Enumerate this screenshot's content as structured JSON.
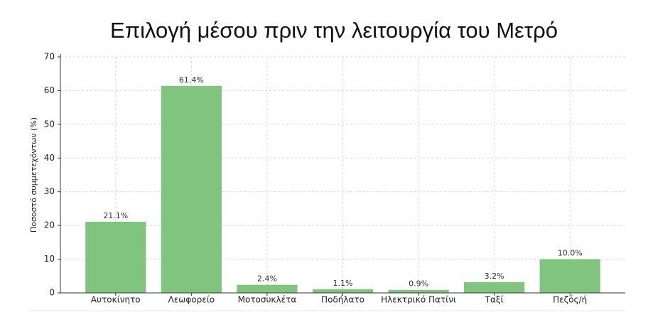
{
  "chart_data": {
    "type": "bar",
    "title": "Επιλογή μέσου πριν την λειτουργία του Μετρό",
    "y_label": "Ποσοστό συμμετεχόντων (%)",
    "categories": [
      "Αυτοκίνητο",
      "Λεωφορείο",
      "Μοτοσυκλέτα",
      "Ποδήλατο",
      "Ηλεκτρικό Πατίνι",
      "Ταξί",
      "Πεζός/ή"
    ],
    "values": [
      21.1,
      61.4,
      2.4,
      1.1,
      0.9,
      3.2,
      10.0
    ],
    "value_labels": [
      "21.1%",
      "61.4%",
      "2.4%",
      "1.1%",
      "0.9%",
      "3.2%",
      "10.0%"
    ],
    "color": "#80c480",
    "ylim": [
      0,
      70
    ],
    "yticks": [
      0,
      10,
      20,
      30,
      40,
      50,
      60,
      70
    ],
    "grid": true
  }
}
